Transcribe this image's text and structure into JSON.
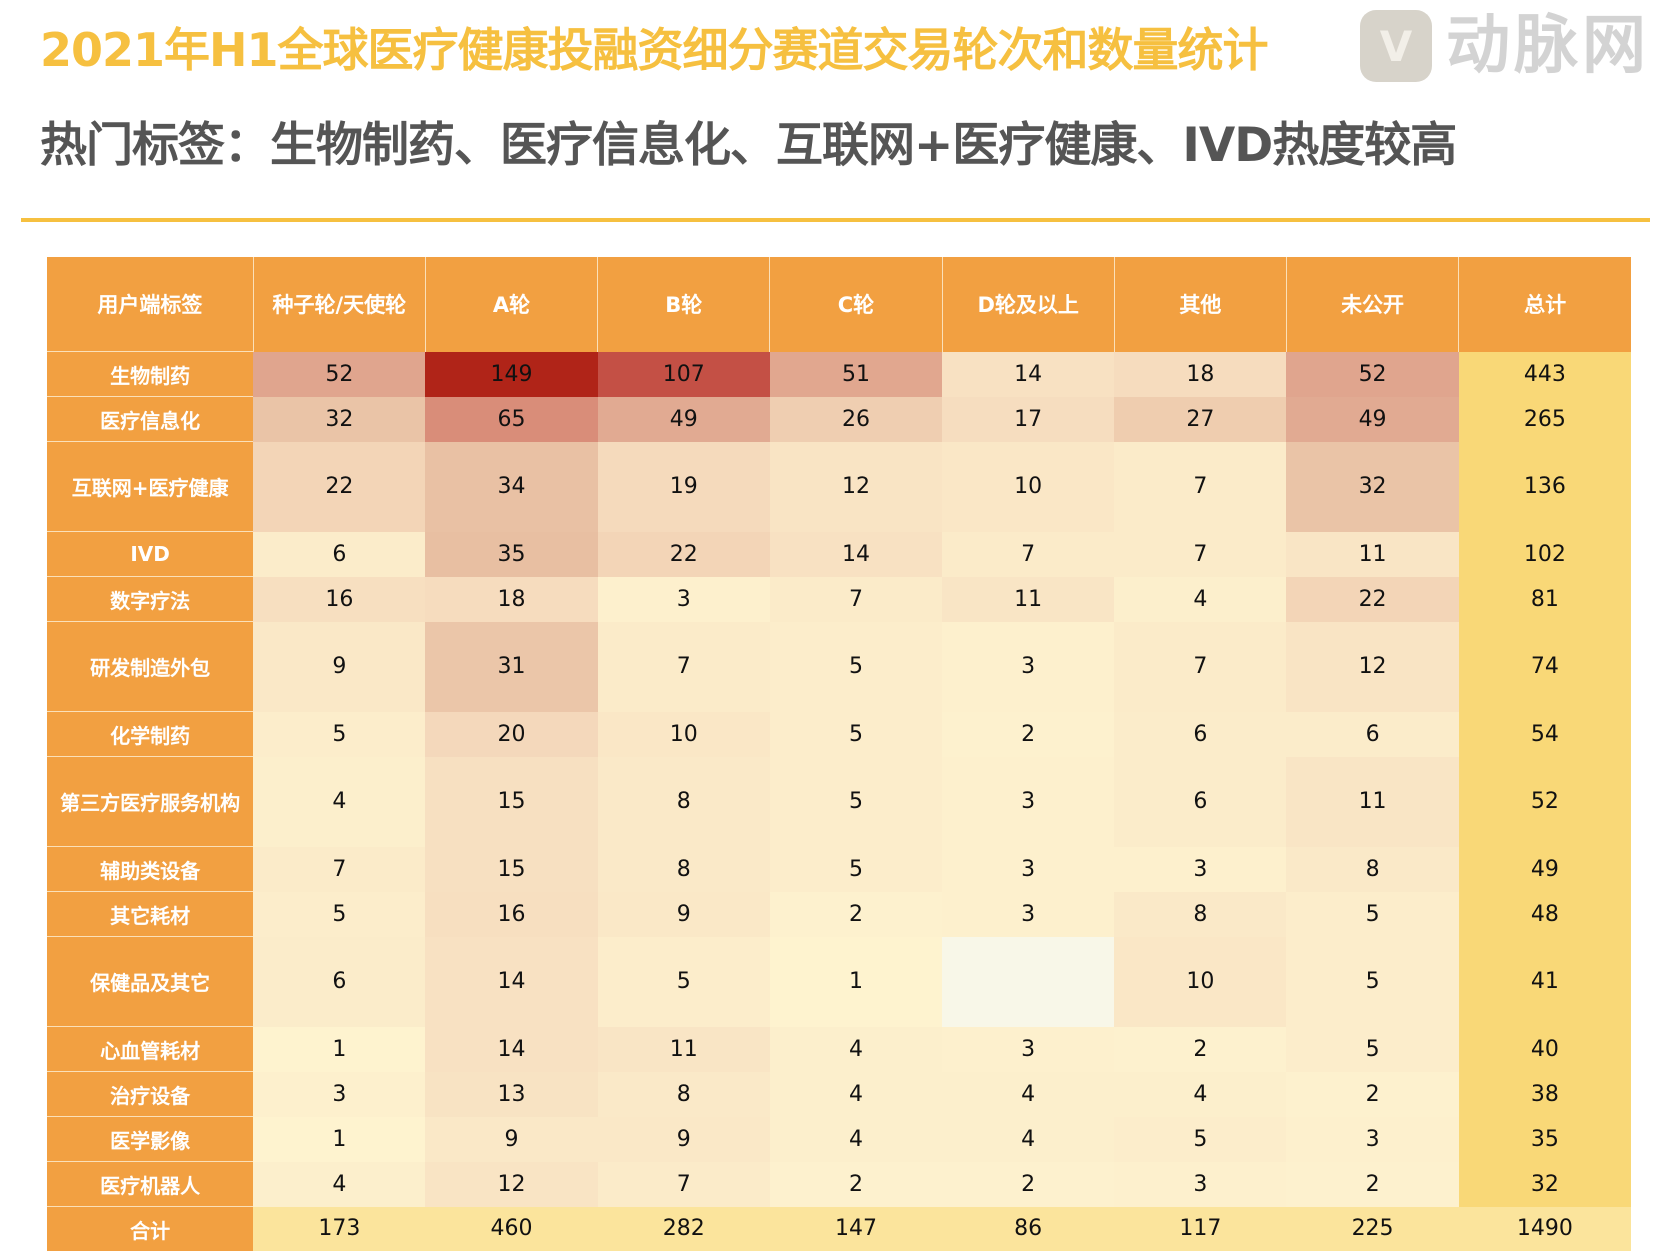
{
  "title": "2021年H1全球医疗健康投融资细分赛道交易轮次和数量统计",
  "subtitle": "热门标签：生物制药、医疗信息化、互联网+医疗健康、IVD热度较高",
  "colors": {
    "accent": "#f6c040",
    "header": "#f2a041",
    "total_col": "#f9d877",
    "sum_row": "#fbe49c",
    "heat_low": "#fef4d0",
    "heat_high": "#b02418"
  },
  "table": {
    "headers": [
      "用户端标签",
      "种子轮/天使轮",
      "A轮",
      "B轮",
      "C轮",
      "D轮及以上",
      "其他",
      "未公开",
      "总计"
    ],
    "rows": [
      {
        "label": "生物制药",
        "values": [
          52,
          149,
          107,
          51,
          14,
          18,
          52
        ],
        "total": 443,
        "tall": false
      },
      {
        "label": "医疗信息化",
        "values": [
          32,
          65,
          49,
          26,
          17,
          27,
          49
        ],
        "total": 265,
        "tall": false
      },
      {
        "label": "互联网+医疗健康",
        "values": [
          22,
          34,
          19,
          12,
          10,
          7,
          32
        ],
        "total": 136,
        "tall": true
      },
      {
        "label": "IVD",
        "values": [
          6,
          35,
          22,
          14,
          7,
          7,
          11
        ],
        "total": 102,
        "tall": false
      },
      {
        "label": "数字疗法",
        "values": [
          16,
          18,
          3,
          7,
          11,
          4,
          22
        ],
        "total": 81,
        "tall": false
      },
      {
        "label": "研发制造外包",
        "values": [
          9,
          31,
          7,
          5,
          3,
          7,
          12
        ],
        "total": 74,
        "tall": true
      },
      {
        "label": "化学制药",
        "values": [
          5,
          20,
          10,
          5,
          2,
          6,
          6
        ],
        "total": 54,
        "tall": false
      },
      {
        "label": "第三方医疗服务机构",
        "values": [
          4,
          15,
          8,
          5,
          3,
          6,
          11
        ],
        "total": 52,
        "tall": true
      },
      {
        "label": "辅助类设备",
        "values": [
          7,
          15,
          8,
          5,
          3,
          3,
          8
        ],
        "total": 49,
        "tall": false
      },
      {
        "label": "其它耗材",
        "values": [
          5,
          16,
          9,
          2,
          3,
          8,
          5
        ],
        "total": 48,
        "tall": false
      },
      {
        "label": "保健品及其它",
        "values": [
          6,
          14,
          5,
          1,
          null,
          10,
          5
        ],
        "total": 41,
        "tall": true
      },
      {
        "label": "心血管耗材",
        "values": [
          1,
          14,
          11,
          4,
          3,
          2,
          5
        ],
        "total": 40,
        "tall": false
      },
      {
        "label": "治疗设备",
        "values": [
          3,
          13,
          8,
          4,
          4,
          4,
          2
        ],
        "total": 38,
        "tall": false
      },
      {
        "label": "医学影像",
        "values": [
          1,
          9,
          9,
          4,
          4,
          5,
          3
        ],
        "total": 35,
        "tall": false
      },
      {
        "label": "医疗机器人",
        "values": [
          4,
          12,
          7,
          2,
          2,
          3,
          2
        ],
        "total": 32,
        "tall": false
      }
    ],
    "sum_row": {
      "label": "合计",
      "values": [
        173,
        460,
        282,
        147,
        86,
        117,
        225
      ],
      "total": 1490
    }
  },
  "watermark": {
    "logo": "V",
    "text": "动脉网"
  }
}
